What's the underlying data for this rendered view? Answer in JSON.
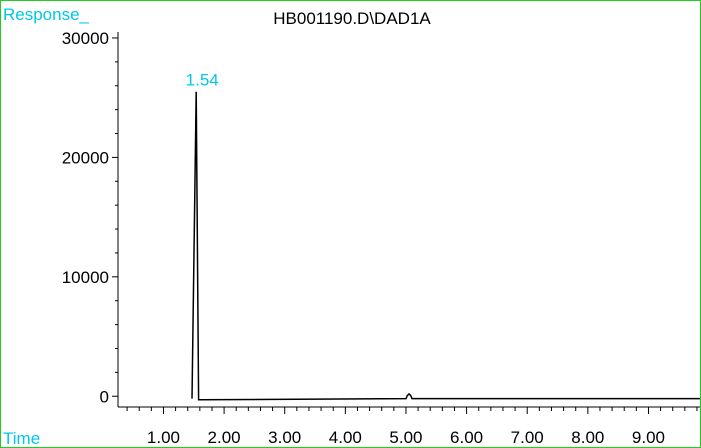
{
  "chart_data": {
    "type": "line",
    "title": "HB001190.D\\DAD1A",
    "ylabel": "Response_",
    "xlabel": "Time",
    "xlim": [
      0.25,
      9.85
    ],
    "ylim": [
      -900,
      30500
    ],
    "x_ticks": [
      1.0,
      2.0,
      3.0,
      4.0,
      5.0,
      6.0,
      7.0,
      8.0,
      9.0
    ],
    "x_tick_labels": [
      "1.00",
      "2.00",
      "3.00",
      "4.00",
      "5.00",
      "6.00",
      "7.00",
      "8.00",
      "9.00"
    ],
    "y_ticks": [
      0,
      10000,
      20000,
      30000
    ],
    "y_tick_labels": [
      "0",
      "10000",
      "20000",
      "30000"
    ],
    "series": [
      {
        "x": [
          1.47,
          1.54,
          1.58,
          5.0,
          5.02,
          5.05,
          5.08,
          5.1,
          9.85
        ],
        "y": [
          -200,
          25500,
          -300,
          -200,
          50,
          200,
          50,
          -200,
          -200
        ]
      }
    ],
    "peak_labels": [
      {
        "x": 1.54,
        "y": 25500,
        "text": "1.54"
      }
    ],
    "colors": {
      "frame": "#22cc22",
      "axis_label": "#00c8e6",
      "peak_label": "#00c8e6",
      "trace": "#000000"
    }
  }
}
